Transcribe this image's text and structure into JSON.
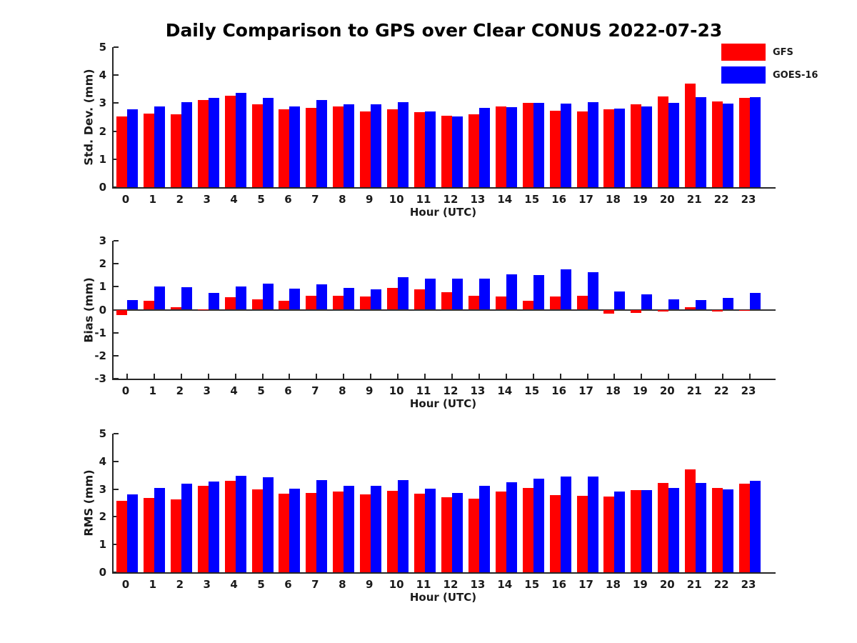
{
  "title": "Daily Comparison to GPS over Clear CONUS 2022-07-23",
  "legend": {
    "items": [
      {
        "label": "GFS",
        "color": "#ff0000"
      },
      {
        "label": "GOES-16",
        "color": "#0000ff"
      }
    ]
  },
  "colors": {
    "gfs": "#ff0000",
    "goes16": "#0000ff",
    "axis": "#262626",
    "text": "#1a1a1a"
  },
  "chart_data": [
    {
      "type": "bar",
      "ylabel": "Std. Dev. (mm)",
      "xlabel": "Hour (UTC)",
      "ylim": [
        0,
        5
      ],
      "yticks": [
        0,
        1,
        2,
        3,
        4,
        5
      ],
      "grid": false,
      "legend_position": "top-right",
      "categories": [
        0,
        1,
        2,
        3,
        4,
        5,
        6,
        7,
        8,
        9,
        10,
        11,
        12,
        13,
        14,
        15,
        16,
        17,
        18,
        19,
        20,
        21,
        22,
        23
      ],
      "series": [
        {
          "name": "GFS",
          "color": "#ff0000",
          "values": [
            2.53,
            2.64,
            2.61,
            3.12,
            3.26,
            2.95,
            2.78,
            2.82,
            2.87,
            2.71,
            2.77,
            2.69,
            2.55,
            2.6,
            2.88,
            3.02,
            2.72,
            2.7,
            2.78,
            2.95,
            3.24,
            3.7,
            3.06,
            3.2
          ]
        },
        {
          "name": "GOES-16",
          "color": "#0000ff",
          "values": [
            2.77,
            2.87,
            3.04,
            3.18,
            3.37,
            3.2,
            2.89,
            3.12,
            2.96,
            2.95,
            3.03,
            2.71,
            2.52,
            2.82,
            2.86,
            3.02,
            2.98,
            3.04,
            2.8,
            2.89,
            3.0,
            3.22,
            2.98,
            3.21
          ]
        }
      ]
    },
    {
      "type": "bar",
      "ylabel": "Bias (mm)",
      "xlabel": "Hour (UTC)",
      "ylim": [
        -3,
        3
      ],
      "yticks": [
        3,
        2,
        1,
        0,
        -1,
        -2,
        -3
      ],
      "zero_line": true,
      "grid": false,
      "categories": [
        0,
        1,
        2,
        3,
        4,
        5,
        6,
        7,
        8,
        9,
        10,
        11,
        12,
        13,
        14,
        15,
        16,
        17,
        18,
        19,
        20,
        21,
        22,
        23
      ],
      "series": [
        {
          "name": "GFS",
          "color": "#ff0000",
          "values": [
            -0.22,
            0.38,
            0.12,
            0.02,
            0.54,
            0.45,
            0.4,
            0.61,
            0.61,
            0.58,
            0.94,
            0.89,
            0.77,
            0.61,
            0.58,
            0.38,
            0.58,
            0.61,
            -0.16,
            -0.14,
            -0.08,
            0.1,
            -0.08,
            -0.04
          ]
        },
        {
          "name": "GOES-16",
          "color": "#0000ff",
          "values": [
            0.41,
            1.0,
            0.97,
            0.72,
            1.0,
            1.12,
            0.91,
            1.11,
            0.94,
            0.88,
            1.42,
            1.34,
            1.36,
            1.35,
            1.54,
            1.52,
            1.76,
            1.64,
            0.78,
            0.66,
            0.44,
            0.42,
            0.52,
            0.74
          ]
        }
      ]
    },
    {
      "type": "bar",
      "ylabel": "RMS (mm)",
      "xlabel": "Hour (UTC)",
      "ylim": [
        0,
        5
      ],
      "yticks": [
        0,
        1,
        2,
        3,
        4,
        5
      ],
      "grid": false,
      "categories": [
        0,
        1,
        2,
        3,
        4,
        5,
        6,
        7,
        8,
        9,
        10,
        11,
        12,
        13,
        14,
        15,
        16,
        17,
        18,
        19,
        20,
        21,
        22,
        23
      ],
      "series": [
        {
          "name": "GFS",
          "color": "#ff0000",
          "values": [
            2.57,
            2.68,
            2.64,
            3.13,
            3.31,
            3.0,
            2.83,
            2.87,
            2.92,
            2.8,
            2.94,
            2.84,
            2.7,
            2.66,
            2.91,
            3.05,
            2.78,
            2.76,
            2.74,
            2.97,
            3.23,
            3.7,
            3.05,
            3.19
          ]
        },
        {
          "name": "GOES-16",
          "color": "#0000ff",
          "values": [
            2.81,
            3.05,
            3.2,
            3.27,
            3.48,
            3.42,
            3.02,
            3.33,
            3.11,
            3.12,
            3.33,
            3.02,
            2.87,
            3.12,
            3.24,
            3.38,
            3.45,
            3.46,
            2.92,
            2.97,
            3.05,
            3.22,
            3.0,
            3.3
          ]
        }
      ]
    }
  ]
}
